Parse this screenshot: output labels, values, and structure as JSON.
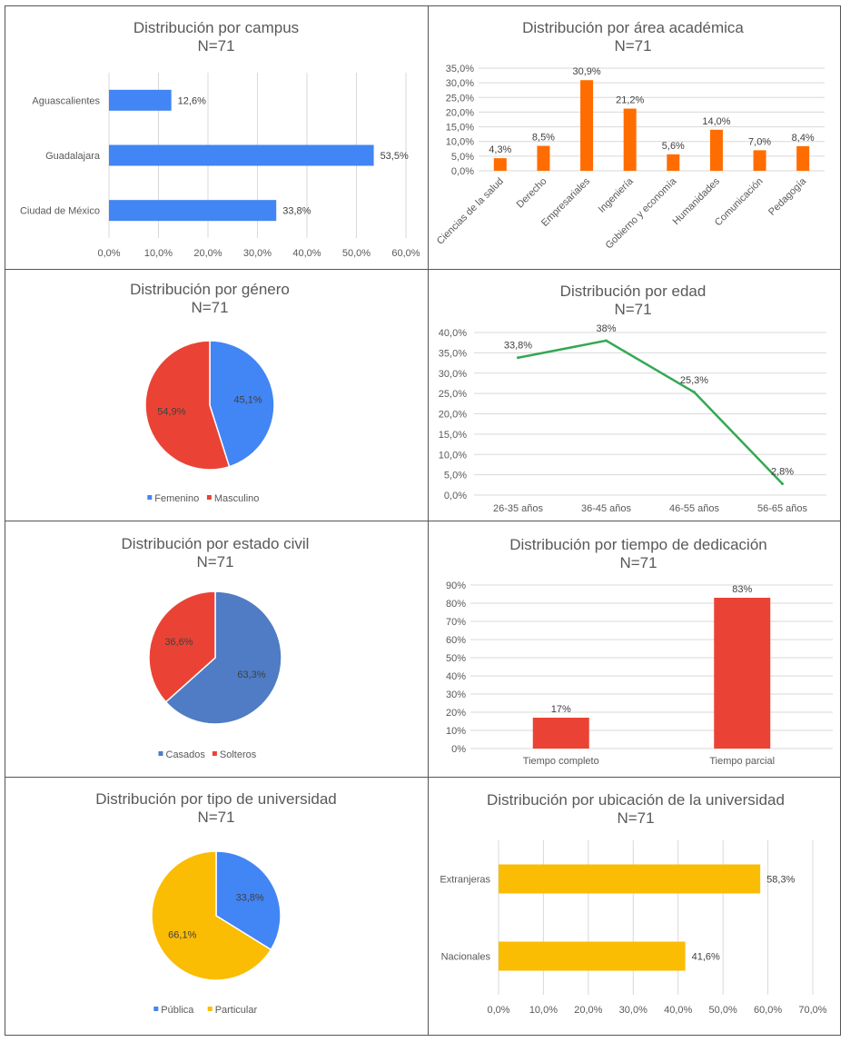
{
  "chart_data": [
    {
      "id": "campus",
      "type": "bar",
      "orientation": "horizontal",
      "title": "Distribución por campus",
      "subtitle": "N=71",
      "categories": [
        "Aguascalientes",
        "Guadalajara",
        "Ciudad de México"
      ],
      "values": [
        12.6,
        53.5,
        33.8
      ],
      "value_labels": [
        "12,6%",
        "53,5%",
        "33,8%"
      ],
      "xlim": [
        0,
        60
      ],
      "ticks": [
        "0,0%",
        "10,0%",
        "20,0%",
        "30,0%",
        "40,0%",
        "50,0%",
        "60,0%"
      ],
      "color": "#4285f4",
      "grid": true
    },
    {
      "id": "area",
      "type": "bar",
      "orientation": "vertical",
      "title": "Distribución por área académica",
      "subtitle": "N=71",
      "categories": [
        "Ciencias de la salud",
        "Derecho",
        "Empresariales",
        "Ingeniería",
        "Gobierno y economía",
        "Humanidades",
        "Comunicación",
        "Pedagogía"
      ],
      "values": [
        4.3,
        8.5,
        30.9,
        21.2,
        5.6,
        14.0,
        7.0,
        8.4
      ],
      "value_labels": [
        "4,3%",
        "8,5%",
        "30,9%",
        "21,2%",
        "5,6%",
        "14,0%",
        "7,0%",
        "8,4%"
      ],
      "ylim": [
        0,
        35
      ],
      "ticks": [
        "0,0%",
        "5,0%",
        "10,0%",
        "15,0%",
        "20,0%",
        "25,0%",
        "30,0%",
        "35,0%"
      ],
      "color": "#ff6d01",
      "grid": true
    },
    {
      "id": "genero",
      "type": "pie",
      "title": "Distribución por género",
      "subtitle": "N=71",
      "labels": [
        "Femenino",
        "Masculino"
      ],
      "values": [
        45.1,
        54.9
      ],
      "value_labels": [
        "45,1%",
        "54,9%"
      ],
      "colors": [
        "#4285f4",
        "#ea4335"
      ],
      "legend": "bottom"
    },
    {
      "id": "edad",
      "type": "line",
      "title": "Distribución por edad",
      "subtitle": "N=71",
      "categories": [
        "26-35 años",
        "36-45 años",
        "46-55 años",
        "56-65 años"
      ],
      "values": [
        33.8,
        38,
        25.3,
        2.8
      ],
      "value_labels": [
        "33,8%",
        "38%",
        "25,3%",
        "2,8%"
      ],
      "ylim": [
        0,
        40
      ],
      "ticks": [
        "0,0%",
        "5,0%",
        "10,0%",
        "15,0%",
        "20,0%",
        "25,0%",
        "30,0%",
        "35,0%",
        "40,0%"
      ],
      "color": "#34a853",
      "grid": true
    },
    {
      "id": "estado_civil",
      "type": "pie",
      "title": "Distribución por estado civil",
      "subtitle": "N=71",
      "labels": [
        "Casados",
        "Solteros"
      ],
      "values": [
        63.3,
        36.6
      ],
      "value_labels": [
        "63,3%",
        "36,6%"
      ],
      "colors": [
        "#4f7cc4",
        "#ea4335"
      ],
      "legend": "bottom"
    },
    {
      "id": "dedicacion",
      "type": "bar",
      "orientation": "vertical",
      "title": "Distribución por tiempo de dedicación",
      "subtitle": "N=71",
      "categories": [
        "Tiempo completo",
        "Tiempo parcial"
      ],
      "values": [
        17,
        83
      ],
      "value_labels": [
        "17%",
        "83%"
      ],
      "ylim": [
        0,
        90
      ],
      "ticks": [
        "0%",
        "10%",
        "20%",
        "30%",
        "40%",
        "50%",
        "60%",
        "70%",
        "80%",
        "90%"
      ],
      "color": "#ea4335",
      "grid": true
    },
    {
      "id": "tipo_universidad",
      "type": "pie",
      "title": "Distribución por tipo de universidad",
      "subtitle": "N=71",
      "labels": [
        "Pública",
        "Particular"
      ],
      "values": [
        33.8,
        66.1
      ],
      "value_labels": [
        "33,8%",
        "66,1%"
      ],
      "colors": [
        "#4285f4",
        "#fbbc04"
      ],
      "legend": "bottom"
    },
    {
      "id": "ubicacion",
      "type": "bar",
      "orientation": "horizontal",
      "title": "Distribución por ubicación de la universidad",
      "subtitle": "N=71",
      "categories": [
        "Extranjeras",
        "Nacionales"
      ],
      "values": [
        58.3,
        41.6
      ],
      "value_labels": [
        "58,3%",
        "41,6%"
      ],
      "xlim": [
        0,
        70
      ],
      "ticks": [
        "0,0%",
        "10,0%",
        "20,0%",
        "30,0%",
        "40,0%",
        "50,0%",
        "60,0%",
        "70,0%"
      ],
      "color": "#fbbc04",
      "grid": true
    }
  ]
}
